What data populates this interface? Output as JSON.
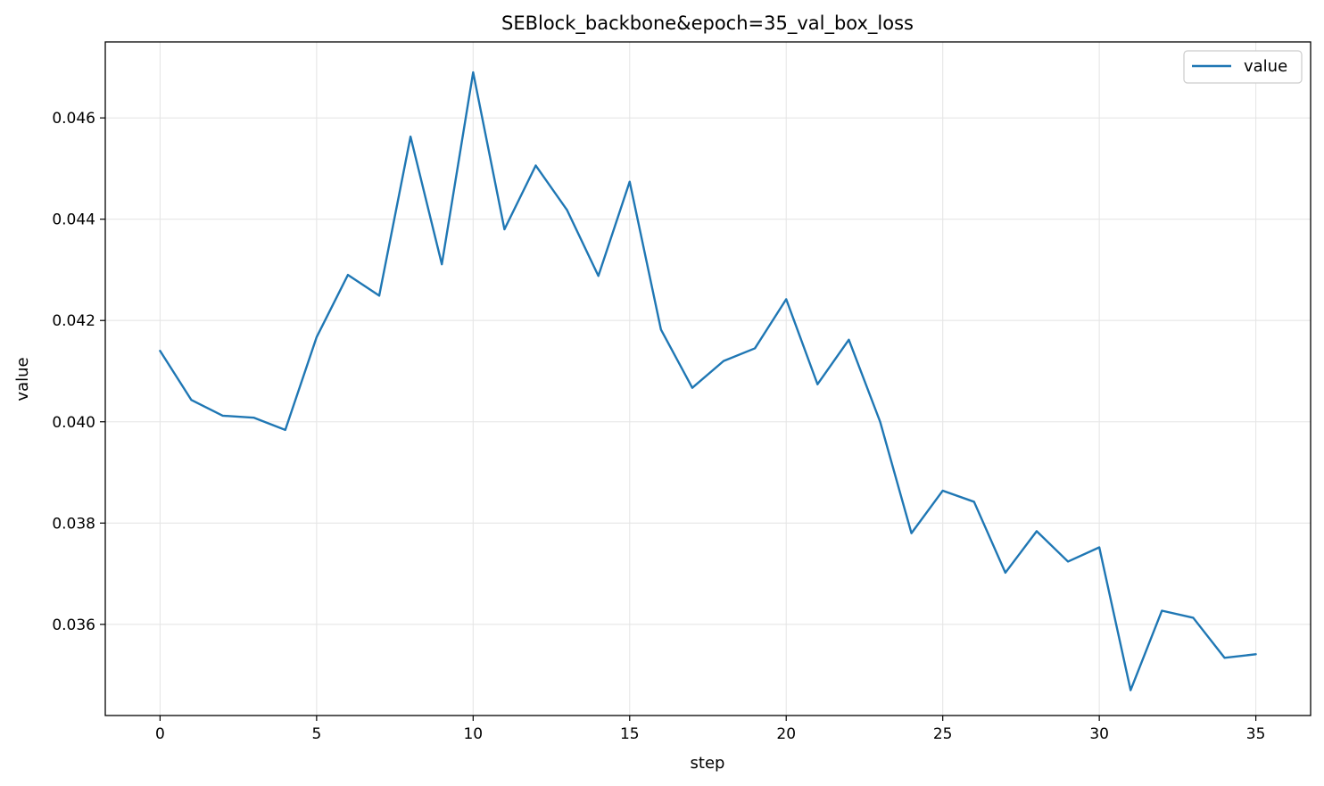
{
  "chart_data": {
    "type": "line",
    "title": "SEBlock_backbone&epoch=35_val_box_loss",
    "xlabel": "step",
    "ylabel": "value",
    "xlim": [
      -1.75,
      36.75
    ],
    "ylim": [
      0.0342,
      0.0475
    ],
    "xticks": [
      0,
      5,
      10,
      15,
      20,
      25,
      30,
      35
    ],
    "xtick_labels": [
      "0",
      "5",
      "10",
      "15",
      "20",
      "25",
      "30",
      "35"
    ],
    "yticks": [
      0.036,
      0.038,
      0.04,
      0.042,
      0.044,
      0.046
    ],
    "ytick_labels": [
      "0.036",
      "0.038",
      "0.040",
      "0.042",
      "0.044",
      "0.046"
    ],
    "grid": true,
    "legend_position": "top-right",
    "series": [
      {
        "name": "value",
        "color": "#1f77b4",
        "x": [
          0,
          1,
          2,
          3,
          4,
          5,
          6,
          7,
          8,
          9,
          10,
          11,
          12,
          13,
          14,
          15,
          16,
          17,
          18,
          19,
          20,
          21,
          22,
          23,
          24,
          25,
          26,
          27,
          28,
          29,
          30,
          31,
          32,
          33,
          34,
          35
        ],
        "y": [
          0.0414,
          0.04043,
          0.04012,
          0.04008,
          0.03984,
          0.04167,
          0.0429,
          0.04249,
          0.04563,
          0.04311,
          0.0469,
          0.0438,
          0.04506,
          0.04418,
          0.04288,
          0.04474,
          0.04182,
          0.04067,
          0.0412,
          0.04145,
          0.04242,
          0.04074,
          0.04162,
          0.04,
          0.0378,
          0.03864,
          0.03842,
          0.03702,
          0.03784,
          0.03724,
          0.03752,
          0.0347,
          0.03627,
          0.03613,
          0.03534,
          0.03541
        ]
      }
    ]
  }
}
